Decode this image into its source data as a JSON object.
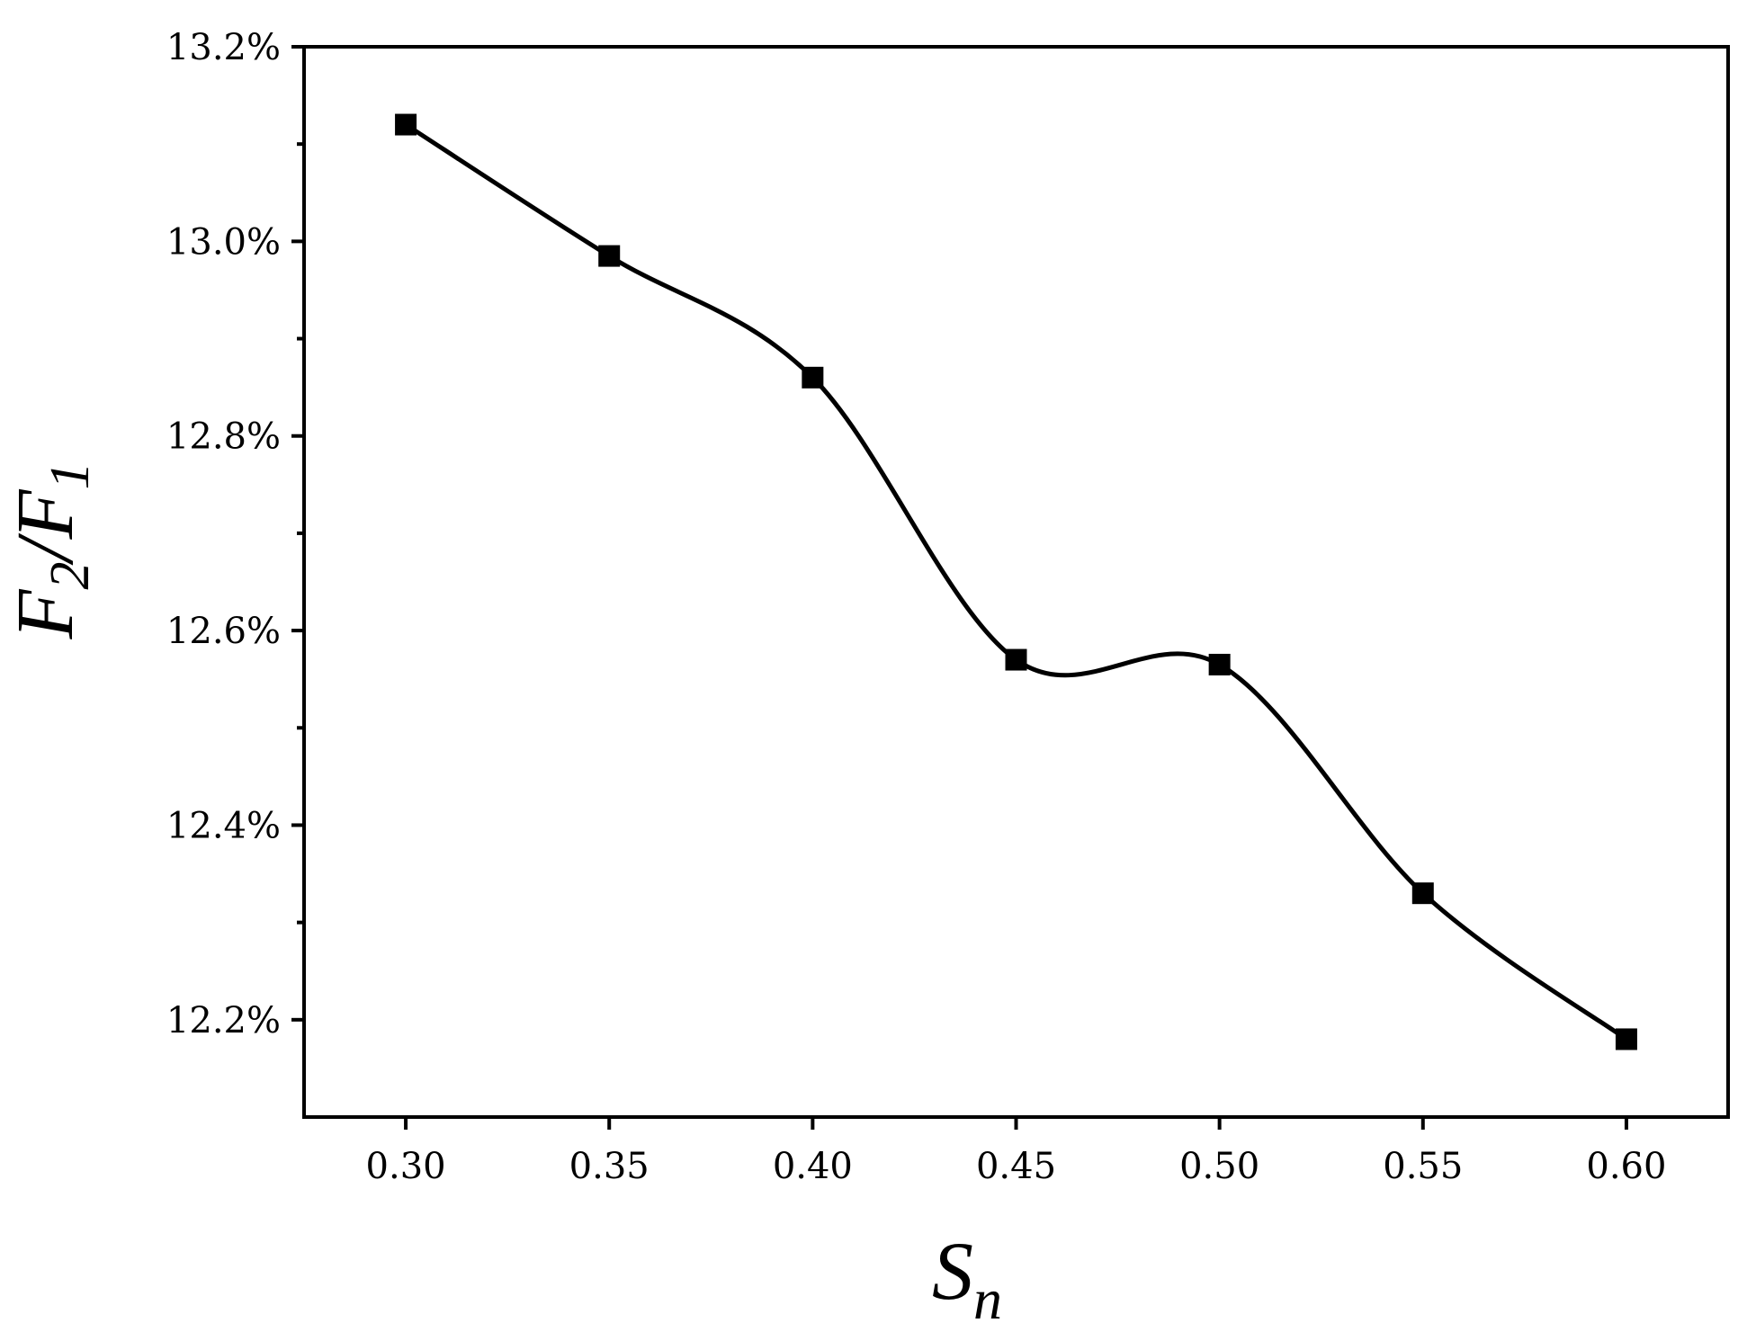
{
  "chart_data": {
    "type": "line",
    "xlabel": {
      "main": "S",
      "sub": "n"
    },
    "ylabel": {
      "main1": "F",
      "sub1": "2",
      "sep": "/",
      "main2": "F",
      "sub2": "1"
    },
    "x": [
      0.3,
      0.35,
      0.4,
      0.45,
      0.5,
      0.55,
      0.6
    ],
    "values": [
      13.12,
      12.985,
      12.86,
      12.57,
      12.565,
      12.33,
      12.18
    ],
    "xlim": [
      0.275,
      0.625
    ],
    "ylim": [
      12.1,
      13.2
    ],
    "x_ticks": [
      "0.30",
      "0.35",
      "0.40",
      "0.45",
      "0.50",
      "0.55",
      "0.60"
    ],
    "y_ticks": [
      {
        "value": 12.2,
        "label": "12.2%"
      },
      {
        "value": 12.4,
        "label": "12.4%"
      },
      {
        "value": 12.6,
        "label": "12.6%"
      },
      {
        "value": 12.8,
        "label": "12.8%"
      },
      {
        "value": 13.0,
        "label": "13.0%"
      },
      {
        "value": 13.2,
        "label": "13.2%"
      }
    ],
    "y_minor_ticks": [
      12.3,
      12.5,
      12.7,
      12.9,
      13.1
    ],
    "grid": false,
    "legend": "none",
    "marker": "square",
    "line_color": "#000000",
    "smooth": true
  }
}
